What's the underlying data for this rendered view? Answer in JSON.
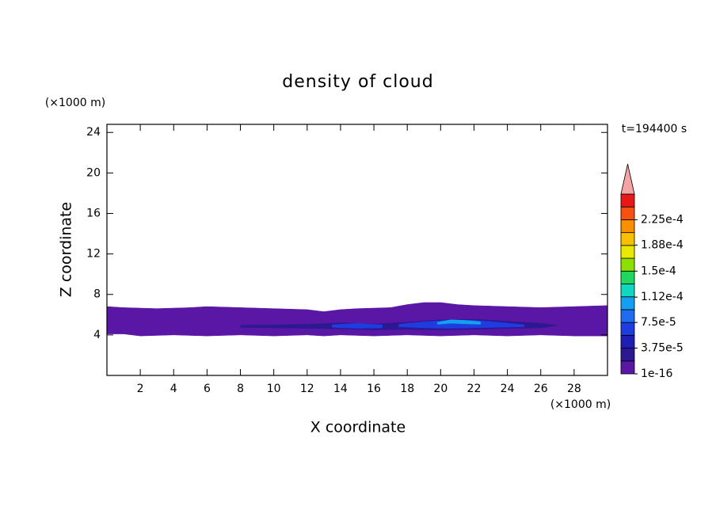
{
  "chart_data": {
    "type": "contour",
    "title": "density of cloud",
    "x_label": "X coordinate",
    "y_label": "Z coordinate",
    "x_unit": "(×1000 m)",
    "y_unit": "(×1000 m)",
    "time_label": "t=194400 s",
    "xlim": [
      0,
      30
    ],
    "ylim": [
      0,
      24.8
    ],
    "xticks": [
      2,
      4,
      6,
      8,
      10,
      12,
      14,
      16,
      18,
      20,
      22,
      24,
      26,
      28
    ],
    "yticks": [
      4,
      8,
      12,
      16,
      20,
      24
    ],
    "colorbar": {
      "clim": [
        1e-16,
        0.0002625
      ],
      "colors": [
        "#5a17a6",
        "#2c1890",
        "#1e1eb4",
        "#1e3ce0",
        "#1e6cf0",
        "#14a0f0",
        "#10d8c0",
        "#20d860",
        "#8ce000",
        "#e8e800",
        "#f8c000",
        "#f89000",
        "#f85010",
        "#e81818"
      ],
      "extend_color": "#f4a4a4",
      "ticks": [
        {
          "value": 1e-16,
          "label": "1e-16"
        },
        {
          "value": 3.75e-05,
          "label": "3.75e-5"
        },
        {
          "value": 7.5e-05,
          "label": "7.5e-5"
        },
        {
          "value": 0.000112,
          "label": "1.12e-4"
        },
        {
          "value": 0.00015,
          "label": "1.5e-4"
        },
        {
          "value": 0.000188,
          "label": "1.88e-4"
        },
        {
          "value": 0.000225,
          "label": "2.25e-4"
        }
      ]
    },
    "regions": [
      {
        "value": 1e-05,
        "x": [
          0,
          1,
          3,
          5,
          6,
          8,
          10,
          12,
          13,
          14,
          15,
          17,
          18,
          19,
          20,
          21,
          22,
          24,
          26,
          28,
          30,
          30,
          28,
          26,
          24,
          22,
          20,
          18,
          16,
          14,
          13,
          12,
          10,
          8,
          6,
          4,
          2,
          1,
          0
        ],
        "z": [
          6.8,
          6.7,
          6.6,
          6.7,
          6.8,
          6.7,
          6.6,
          6.5,
          6.3,
          6.5,
          6.6,
          6.7,
          7.0,
          7.2,
          7.2,
          7.0,
          6.9,
          6.8,
          6.7,
          6.8,
          6.9,
          3.9,
          3.9,
          4.0,
          3.9,
          4.0,
          3.9,
          4.0,
          3.9,
          4.0,
          3.9,
          4.0,
          3.9,
          4.0,
          3.9,
          4.0,
          3.9,
          4.1,
          4.1
        ]
      },
      {
        "value": 2.5e-05,
        "x": [
          8,
          10,
          12,
          14,
          16,
          18,
          20,
          22,
          24,
          26,
          27,
          26,
          24,
          22,
          20,
          18,
          16,
          14,
          12,
          10,
          8
        ],
        "z": [
          4.95,
          5.0,
          5.05,
          5.2,
          5.1,
          5.25,
          5.5,
          5.55,
          5.35,
          5.15,
          4.95,
          4.7,
          4.65,
          4.55,
          4.5,
          4.55,
          4.5,
          4.6,
          4.65,
          4.7,
          4.75
        ]
      },
      {
        "value": 6e-05,
        "x": [
          13.5,
          15,
          16.5,
          16.5,
          15,
          13.5
        ],
        "z": [
          5.0,
          5.15,
          5.0,
          4.7,
          4.65,
          4.75
        ]
      },
      {
        "value": 6e-05,
        "x": [
          17.5,
          19,
          20.5,
          22,
          23.5,
          25,
          25,
          23.5,
          22,
          20.5,
          19,
          17.5
        ],
        "z": [
          5.05,
          5.3,
          5.45,
          5.45,
          5.25,
          5.0,
          4.8,
          4.75,
          4.7,
          4.65,
          4.7,
          4.8
        ]
      },
      {
        "value": 0.00011,
        "x": [
          19.8,
          20.6,
          21.4,
          22.4,
          22.4,
          21.4,
          20.6,
          19.8
        ],
        "z": [
          5.25,
          5.5,
          5.45,
          5.3,
          5.05,
          5.1,
          5.15,
          5.05
        ]
      }
    ]
  }
}
